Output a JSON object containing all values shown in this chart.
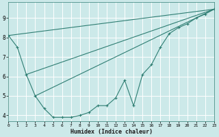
{
  "background_color": "#cce9e9",
  "grid_color": "#ffffff",
  "line_color": "#2e7d72",
  "xlabel": "Humidex (Indice chaleur)",
  "ylim": [
    3.7,
    9.8
  ],
  "xlim": [
    0,
    23
  ],
  "yticks": [
    4,
    5,
    6,
    7,
    8,
    9
  ],
  "xticks": [
    0,
    1,
    2,
    3,
    4,
    5,
    6,
    7,
    8,
    9,
    10,
    11,
    12,
    13,
    14,
    15,
    16,
    17,
    18,
    19,
    20,
    21,
    22,
    23
  ],
  "curve_x": [
    0,
    1,
    2,
    3,
    4,
    5,
    6,
    7,
    8,
    9,
    10,
    11,
    12,
    13,
    14,
    15,
    16,
    17,
    18,
    19,
    20,
    21,
    22,
    23
  ],
  "curve_y": [
    8.1,
    7.5,
    6.1,
    5.0,
    4.35,
    3.9,
    3.9,
    3.9,
    4.0,
    4.15,
    4.5,
    4.5,
    4.9,
    5.8,
    4.5,
    6.1,
    6.6,
    7.5,
    8.2,
    8.5,
    8.7,
    9.0,
    9.2,
    9.45
  ],
  "line1_x": [
    0,
    23
  ],
  "line1_y": [
    8.1,
    9.45
  ],
  "line2_x": [
    2,
    23
  ],
  "line2_y": [
    6.1,
    9.45
  ],
  "line3_x": [
    3,
    23
  ],
  "line3_y": [
    5.0,
    9.45
  ]
}
